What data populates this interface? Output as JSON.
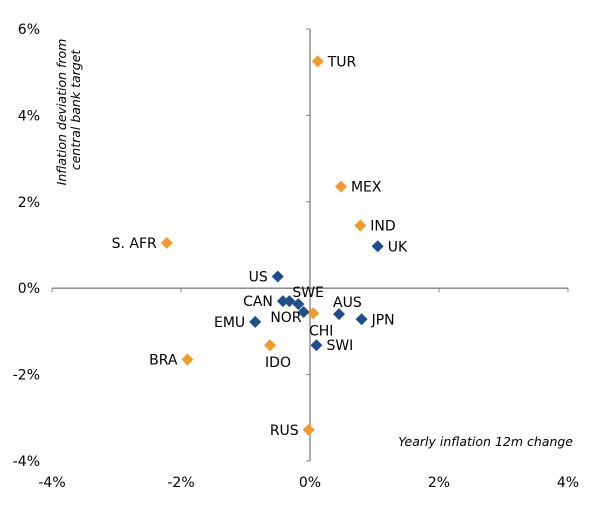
{
  "chart_data": {
    "type": "scatter",
    "title": "",
    "xlabel": "Yearly inflation 12m change",
    "ylabel_lines": [
      "Inflation deviation from",
      "central bank target"
    ],
    "xlim": [
      -4,
      4
    ],
    "ylim": [
      -4,
      6
    ],
    "x_ticks": [
      -4,
      -2,
      0,
      2,
      4
    ],
    "y_ticks": [
      -4,
      -2,
      0,
      2,
      4,
      6
    ],
    "x_tick_labels": [
      "-4%",
      "-2%",
      "0%",
      "2%",
      "4%"
    ],
    "y_tick_labels": [
      "-4%",
      "-2%",
      "0%",
      "2%",
      "4%",
      "6%"
    ],
    "grid": false,
    "legend": "none",
    "colors": {
      "emerging": "#F39A2E",
      "developed": "#1F4E8C",
      "axis": "#808080"
    },
    "series": [
      {
        "name": "emerging",
        "color": "#F39A2E",
        "points": [
          {
            "label": "TUR",
            "x": 0.12,
            "y": 5.25,
            "label_side": "right"
          },
          {
            "label": "MEX",
            "x": 0.48,
            "y": 2.35,
            "label_side": "right"
          },
          {
            "label": "IND",
            "x": 0.78,
            "y": 1.45,
            "label_side": "right"
          },
          {
            "label": "S. AFR",
            "x": -2.22,
            "y": 1.05,
            "label_side": "left"
          },
          {
            "label": "CHI",
            "x": 0.05,
            "y": -0.58,
            "label_side": "below"
          },
          {
            "label": "IDO",
            "x": -0.62,
            "y": -1.32,
            "label_side": "below"
          },
          {
            "label": "BRA",
            "x": -1.9,
            "y": -1.65,
            "label_side": "left"
          },
          {
            "label": "RUS",
            "x": -0.02,
            "y": -3.28,
            "label_side": "left"
          }
        ]
      },
      {
        "name": "developed",
        "color": "#1F4E8C",
        "points": [
          {
            "label": "UK",
            "x": 1.05,
            "y": 0.97,
            "label_side": "right"
          },
          {
            "label": "US",
            "x": -0.5,
            "y": 0.27,
            "label_side": "left"
          },
          {
            "label": "CAN",
            "x": -0.42,
            "y": -0.3,
            "label_side": "left"
          },
          {
            "label": "",
            "x": -0.32,
            "y": -0.3,
            "label_side": "none"
          },
          {
            "label": "SWE",
            "x": -0.18,
            "y": -0.37,
            "label_side": "above-right"
          },
          {
            "label": "NOR",
            "x": -0.1,
            "y": -0.55,
            "label_side": "below-left"
          },
          {
            "label": "AUS",
            "x": 0.45,
            "y": -0.6,
            "label_side": "above-right"
          },
          {
            "label": "JPN",
            "x": 0.8,
            "y": -0.72,
            "label_side": "right"
          },
          {
            "label": "EMU",
            "x": -0.85,
            "y": -0.78,
            "label_side": "left"
          },
          {
            "label": "SWI",
            "x": 0.1,
            "y": -1.32,
            "label_side": "right"
          }
        ]
      }
    ]
  }
}
